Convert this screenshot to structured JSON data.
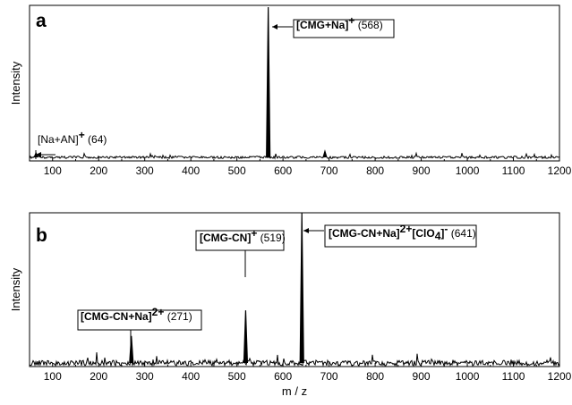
{
  "chart_data": [
    {
      "type": "line",
      "panel_letter": "a",
      "xlabel": "",
      "ylabel": "Intensity",
      "xlim": [
        50,
        1200
      ],
      "xticks": [
        100,
        200,
        300,
        400,
        500,
        600,
        700,
        800,
        900,
        1000,
        1100,
        1200
      ],
      "peaks": [
        {
          "x": 64,
          "y": 0.03
        },
        {
          "x": 568,
          "y": 1.0
        },
        {
          "x": 691,
          "y": 0.04
        }
      ],
      "annotations": [
        {
          "bold": "[Na+AN]",
          "sup": "+",
          "tail": " (64)",
          "boxed": false,
          "peak_x": 64
        },
        {
          "bold": "[CMG+Na]",
          "sup": "+",
          "tail": " (568)",
          "boxed": true,
          "peak_x": 568
        }
      ]
    },
    {
      "type": "line",
      "panel_letter": "b",
      "xlabel": "m / z",
      "ylabel": "Intensity",
      "xlim": [
        50,
        1200
      ],
      "xticks": [
        100,
        200,
        300,
        400,
        500,
        600,
        700,
        800,
        900,
        1000,
        1100,
        1200
      ],
      "peaks": [
        {
          "x": 271,
          "y": 0.18
        },
        {
          "x": 519,
          "y": 0.35
        },
        {
          "x": 641,
          "y": 1.0
        }
      ],
      "annotations": [
        {
          "bold": "[CMG-CN+Na]",
          "sup": "2+",
          "tail": " (271)",
          "boxed": true,
          "peak_x": 271
        },
        {
          "bold": "[CMG-CN]",
          "sup": "+",
          "tail": " (519)",
          "boxed": true,
          "peak_x": 519
        },
        {
          "bold": "[CMG-CN+Na]",
          "sup": "2+",
          "mid": "[ClO",
          "sub": "4",
          "sup2": "]",
          "sup2b": "-",
          "tail": " (641)",
          "boxed": true,
          "peak_x": 641
        }
      ]
    }
  ]
}
